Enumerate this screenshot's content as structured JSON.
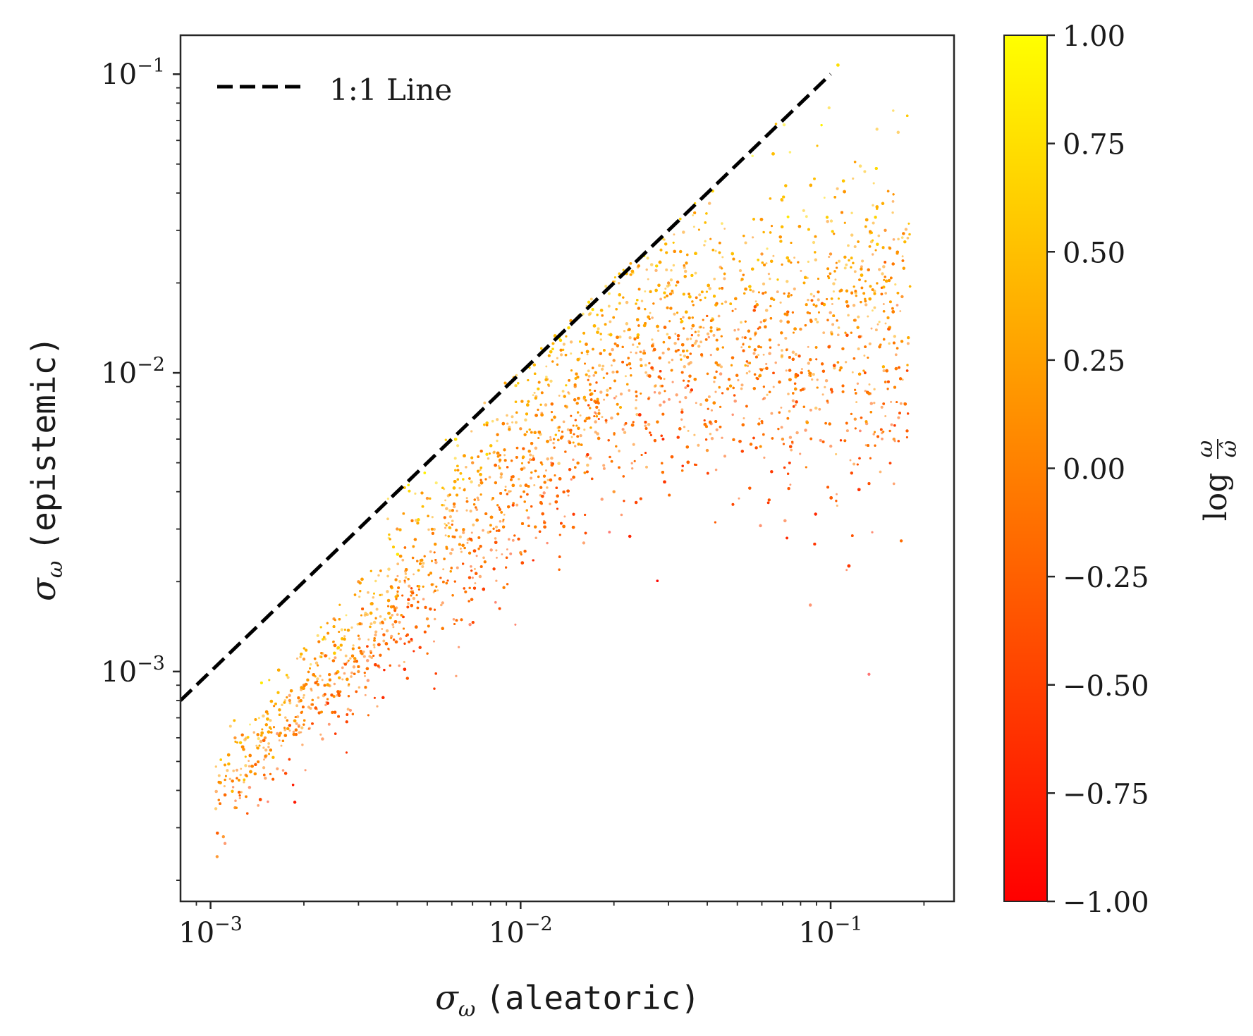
{
  "chart_data": {
    "type": "scatter",
    "title": "",
    "xlabel": {
      "symbol": "σ",
      "subscript": "ω",
      "text": "(aleatoric)"
    },
    "ylabel": {
      "symbol": "σ",
      "subscript": "ω",
      "text": "(epistemic)"
    },
    "xscale": "log",
    "yscale": "log",
    "xlim": [
      0.0008,
      0.25
    ],
    "ylim": [
      0.00017,
      0.135
    ],
    "xticks": [
      {
        "value": 0.001,
        "base": "10",
        "exp": "−3"
      },
      {
        "value": 0.01,
        "base": "10",
        "exp": "−2"
      },
      {
        "value": 0.1,
        "base": "10",
        "exp": "−1"
      }
    ],
    "yticks": [
      {
        "value": 0.001,
        "base": "10",
        "exp": "−3"
      },
      {
        "value": 0.01,
        "base": "10",
        "exp": "−2"
      },
      {
        "value": 0.1,
        "base": "10",
        "exp": "−1"
      }
    ],
    "grid": false,
    "legend": {
      "position": "top-left",
      "entries": [
        {
          "label": "1:1 Line",
          "style": "dashed",
          "color": "#000000"
        }
      ]
    },
    "reference_line": {
      "label": "1:1 Line",
      "x": [
        0.0008,
        0.1
      ],
      "y": [
        0.0008,
        0.1
      ]
    },
    "series": [
      {
        "description": "dense point cloud; color encodes log ratio",
        "points_sampled": [
          [
            0.00105,
            0.00024
          ],
          [
            0.0011,
            0.00028
          ],
          [
            0.0012,
            0.00035
          ],
          [
            0.0013,
            0.00045
          ],
          [
            0.0015,
            0.0006
          ],
          [
            0.0018,
            0.0008
          ],
          [
            0.002,
            0.0011
          ],
          [
            0.0025,
            0.0015
          ],
          [
            0.003,
            0.002
          ],
          [
            0.004,
            0.003
          ],
          [
            0.005,
            0.0038
          ],
          [
            0.007,
            0.005
          ],
          [
            0.01,
            0.0065
          ],
          [
            0.015,
            0.009
          ],
          [
            0.02,
            0.011
          ],
          [
            0.03,
            0.012
          ],
          [
            0.05,
            0.013
          ],
          [
            0.08,
            0.014
          ],
          [
            0.12,
            0.015
          ],
          [
            0.17,
            0.018
          ],
          [
            0.003,
            0.001
          ],
          [
            0.005,
            0.0015
          ],
          [
            0.01,
            0.0025
          ],
          [
            0.02,
            0.004
          ],
          [
            0.04,
            0.0055
          ],
          [
            0.07,
            0.006
          ],
          [
            0.12,
            0.007
          ],
          [
            0.16,
            0.006
          ],
          [
            0.0012,
            0.0006
          ],
          [
            0.002,
            0.0009
          ],
          [
            0.15,
            0.03
          ],
          [
            0.1,
            0.025
          ],
          [
            0.06,
            0.025
          ],
          [
            0.03,
            0.02
          ]
        ]
      }
    ],
    "colorbar": {
      "label": {
        "prefix": "log",
        "numerator": "ω",
        "denominator": "ω̂"
      },
      "range": [
        -1.0,
        1.0
      ],
      "colormap": "autumn",
      "color_low": "#ff0000",
      "color_high": "#ffff00",
      "ticks": [
        "1.00",
        "0.75",
        "0.50",
        "0.25",
        "0.00",
        "−0.25",
        "−0.50",
        "−0.75",
        "−1.00"
      ]
    }
  }
}
